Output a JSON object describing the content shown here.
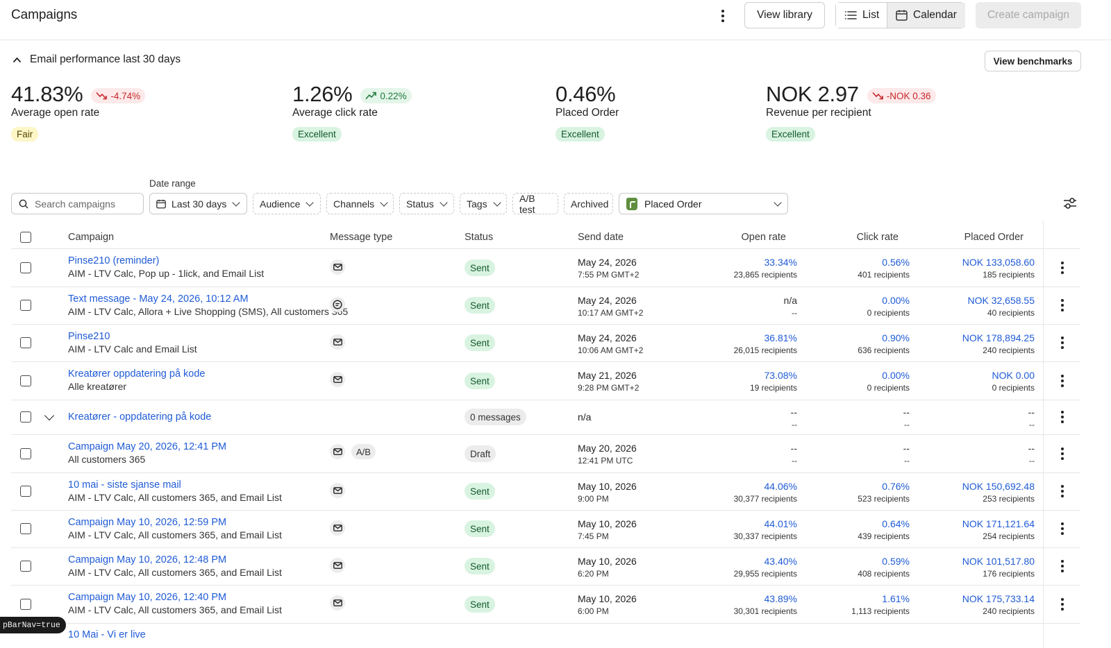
{
  "header": {
    "title": "Campaigns",
    "view_library": "View library",
    "view_list": "List",
    "view_calendar": "Calendar",
    "create_campaign": "Create campaign"
  },
  "performance": {
    "title": "Email performance last 30 days",
    "view_benchmarks": "View benchmarks",
    "metrics": [
      {
        "value": "41.83%",
        "delta": "-4.74%",
        "delta_direction": "down",
        "label": "Average open rate",
        "benchmark": "Fair"
      },
      {
        "value": "1.26%",
        "delta": "0.22%",
        "delta_direction": "up",
        "label": "Average click rate",
        "benchmark": "Excellent"
      },
      {
        "value": "0.46%",
        "delta": "",
        "delta_direction": "",
        "label": "Placed Order",
        "benchmark": "Excellent"
      },
      {
        "value": "NOK 2.97",
        "delta": "-NOK 0.36",
        "delta_direction": "down",
        "label": "Revenue per recipient",
        "benchmark": "Excellent"
      }
    ]
  },
  "filters": {
    "search_placeholder": "Search campaigns",
    "date_range_label": "Date range",
    "date_range_value": "Last 30 days",
    "audience": "Audience",
    "channels": "Channels",
    "status": "Status",
    "tags": "Tags",
    "ab_test": "A/B test",
    "archived": "Archived",
    "metric": "Placed Order"
  },
  "table": {
    "columns": {
      "campaign": "Campaign",
      "message_type": "Message type",
      "status": "Status",
      "send_date": "Send date",
      "open_rate": "Open rate",
      "click_rate": "Click rate",
      "placed_order": "Placed Order"
    },
    "rows": [
      {
        "name": "Pinse210 (reminder)",
        "sub": "AIM - LTV Calc, Pop up - 1lick, and Email List",
        "type": "email",
        "ab": "",
        "status": "Sent",
        "date": "May 24, 2026",
        "time": "7:55 PM GMT+2",
        "open": "33.34%",
        "open_sub": "23,865 recipients",
        "click": "0.56%",
        "click_sub": "401 recipients",
        "order": "NOK 133,058.60",
        "order_sub": "185 recipients"
      },
      {
        "name": "Text message - May 24, 2026, 10:12 AM",
        "sub": "AIM - LTV Calc, Allora + Live Shopping (SMS), All customers 365",
        "type": "sms",
        "ab": "",
        "status": "Sent",
        "date": "May 24, 2026",
        "time": "10:17 AM GMT+2",
        "open": "n/a",
        "open_sub": "--",
        "click": "0.00%",
        "click_sub": "0 recipients",
        "order": "NOK 32,658.55",
        "order_sub": "40 recipients"
      },
      {
        "name": "Pinse210",
        "sub": "AIM - LTV Calc and Email List",
        "type": "email",
        "ab": "",
        "status": "Sent",
        "date": "May 24, 2026",
        "time": "10:06 AM GMT+2",
        "open": "36.81%",
        "open_sub": "26,015 recipients",
        "click": "0.90%",
        "click_sub": "636 recipients",
        "order": "NOK 178,894.25",
        "order_sub": "240 recipients"
      },
      {
        "name": "Kreatører oppdatering på kode",
        "sub": "Alle kreatører",
        "type": "email",
        "ab": "",
        "status": "Sent",
        "date": "May 21, 2026",
        "time": "9:28 PM GMT+2",
        "open": "73.08%",
        "open_sub": "19 recipients",
        "click": "0.00%",
        "click_sub": "0 recipients",
        "order": "NOK 0.00",
        "order_sub": "0 recipients"
      },
      {
        "name": "Kreatører - oppdatering på kode",
        "sub": "",
        "type": "",
        "ab": "",
        "status": "0 messages",
        "date": "n/a",
        "time": "",
        "open": "--",
        "open_sub": "--",
        "click": "--",
        "click_sub": "--",
        "order": "--",
        "order_sub": "--"
      },
      {
        "name": "Campaign May 20, 2026, 12:41 PM",
        "sub": "All customers 365",
        "type": "email",
        "ab": "A/B",
        "status": "Draft",
        "date": "May 20, 2026",
        "time": "12:41 PM UTC",
        "open": "--",
        "open_sub": "--",
        "click": "--",
        "click_sub": "--",
        "order": "--",
        "order_sub": "--"
      },
      {
        "name": "10 mai - siste sjanse mail",
        "sub": "AIM - LTV Calc, All customers 365, and Email List",
        "type": "email",
        "ab": "",
        "status": "Sent",
        "date": "May 10, 2026",
        "time": "9:00 PM",
        "open": "44.06%",
        "open_sub": "30,377 recipients",
        "click": "0.76%",
        "click_sub": "523 recipients",
        "order": "NOK 150,692.48",
        "order_sub": "253 recipients"
      },
      {
        "name": "Campaign May 10, 2026, 12:59 PM",
        "sub": "AIM - LTV Calc, All customers 365, and Email List",
        "type": "email",
        "ab": "",
        "status": "Sent",
        "date": "May 10, 2026",
        "time": "7:45 PM",
        "open": "44.01%",
        "open_sub": "30,337 recipients",
        "click": "0.64%",
        "click_sub": "439 recipients",
        "order": "NOK 171,121.64",
        "order_sub": "254 recipients"
      },
      {
        "name": "Campaign May 10, 2026, 12:48 PM",
        "sub": "AIM - LTV Calc, All customers 365, and Email List",
        "type": "email",
        "ab": "",
        "status": "Sent",
        "date": "May 10, 2026",
        "time": "6:20 PM",
        "open": "43.40%",
        "open_sub": "29,955 recipients",
        "click": "0.59%",
        "click_sub": "408 recipients",
        "order": "NOK 101,517.80",
        "order_sub": "176 recipients"
      },
      {
        "name": "Campaign May 10, 2026, 12:40 PM",
        "sub": "AIM - LTV Calc, All customers 365, and Email List",
        "type": "email",
        "ab": "",
        "status": "Sent",
        "date": "May 10, 2026",
        "time": "6:00 PM",
        "open": "43.89%",
        "open_sub": "30,301 recipients",
        "click": "1.61%",
        "click_sub": "1,113 recipients",
        "order": "NOK 175,733.14",
        "order_sub": "240 recipients"
      }
    ],
    "partial_row_name": "10 Mai - Vi er live"
  },
  "debug_pill": "pBarNav=true",
  "colors": {
    "link": "#1f5bd6",
    "sent_bg": "#d9f3e1",
    "negative": "#c7272b",
    "positive": "#1e7a3c",
    "fair_bg": "#fdf6c7"
  },
  "icons": [
    "kebab-icon",
    "list-icon",
    "calendar-icon",
    "chevron-up-icon",
    "trend-down-icon",
    "trend-up-icon",
    "search-icon",
    "chevron-down-icon",
    "shopify-icon",
    "sliders-icon",
    "email-icon",
    "sms-icon"
  ]
}
